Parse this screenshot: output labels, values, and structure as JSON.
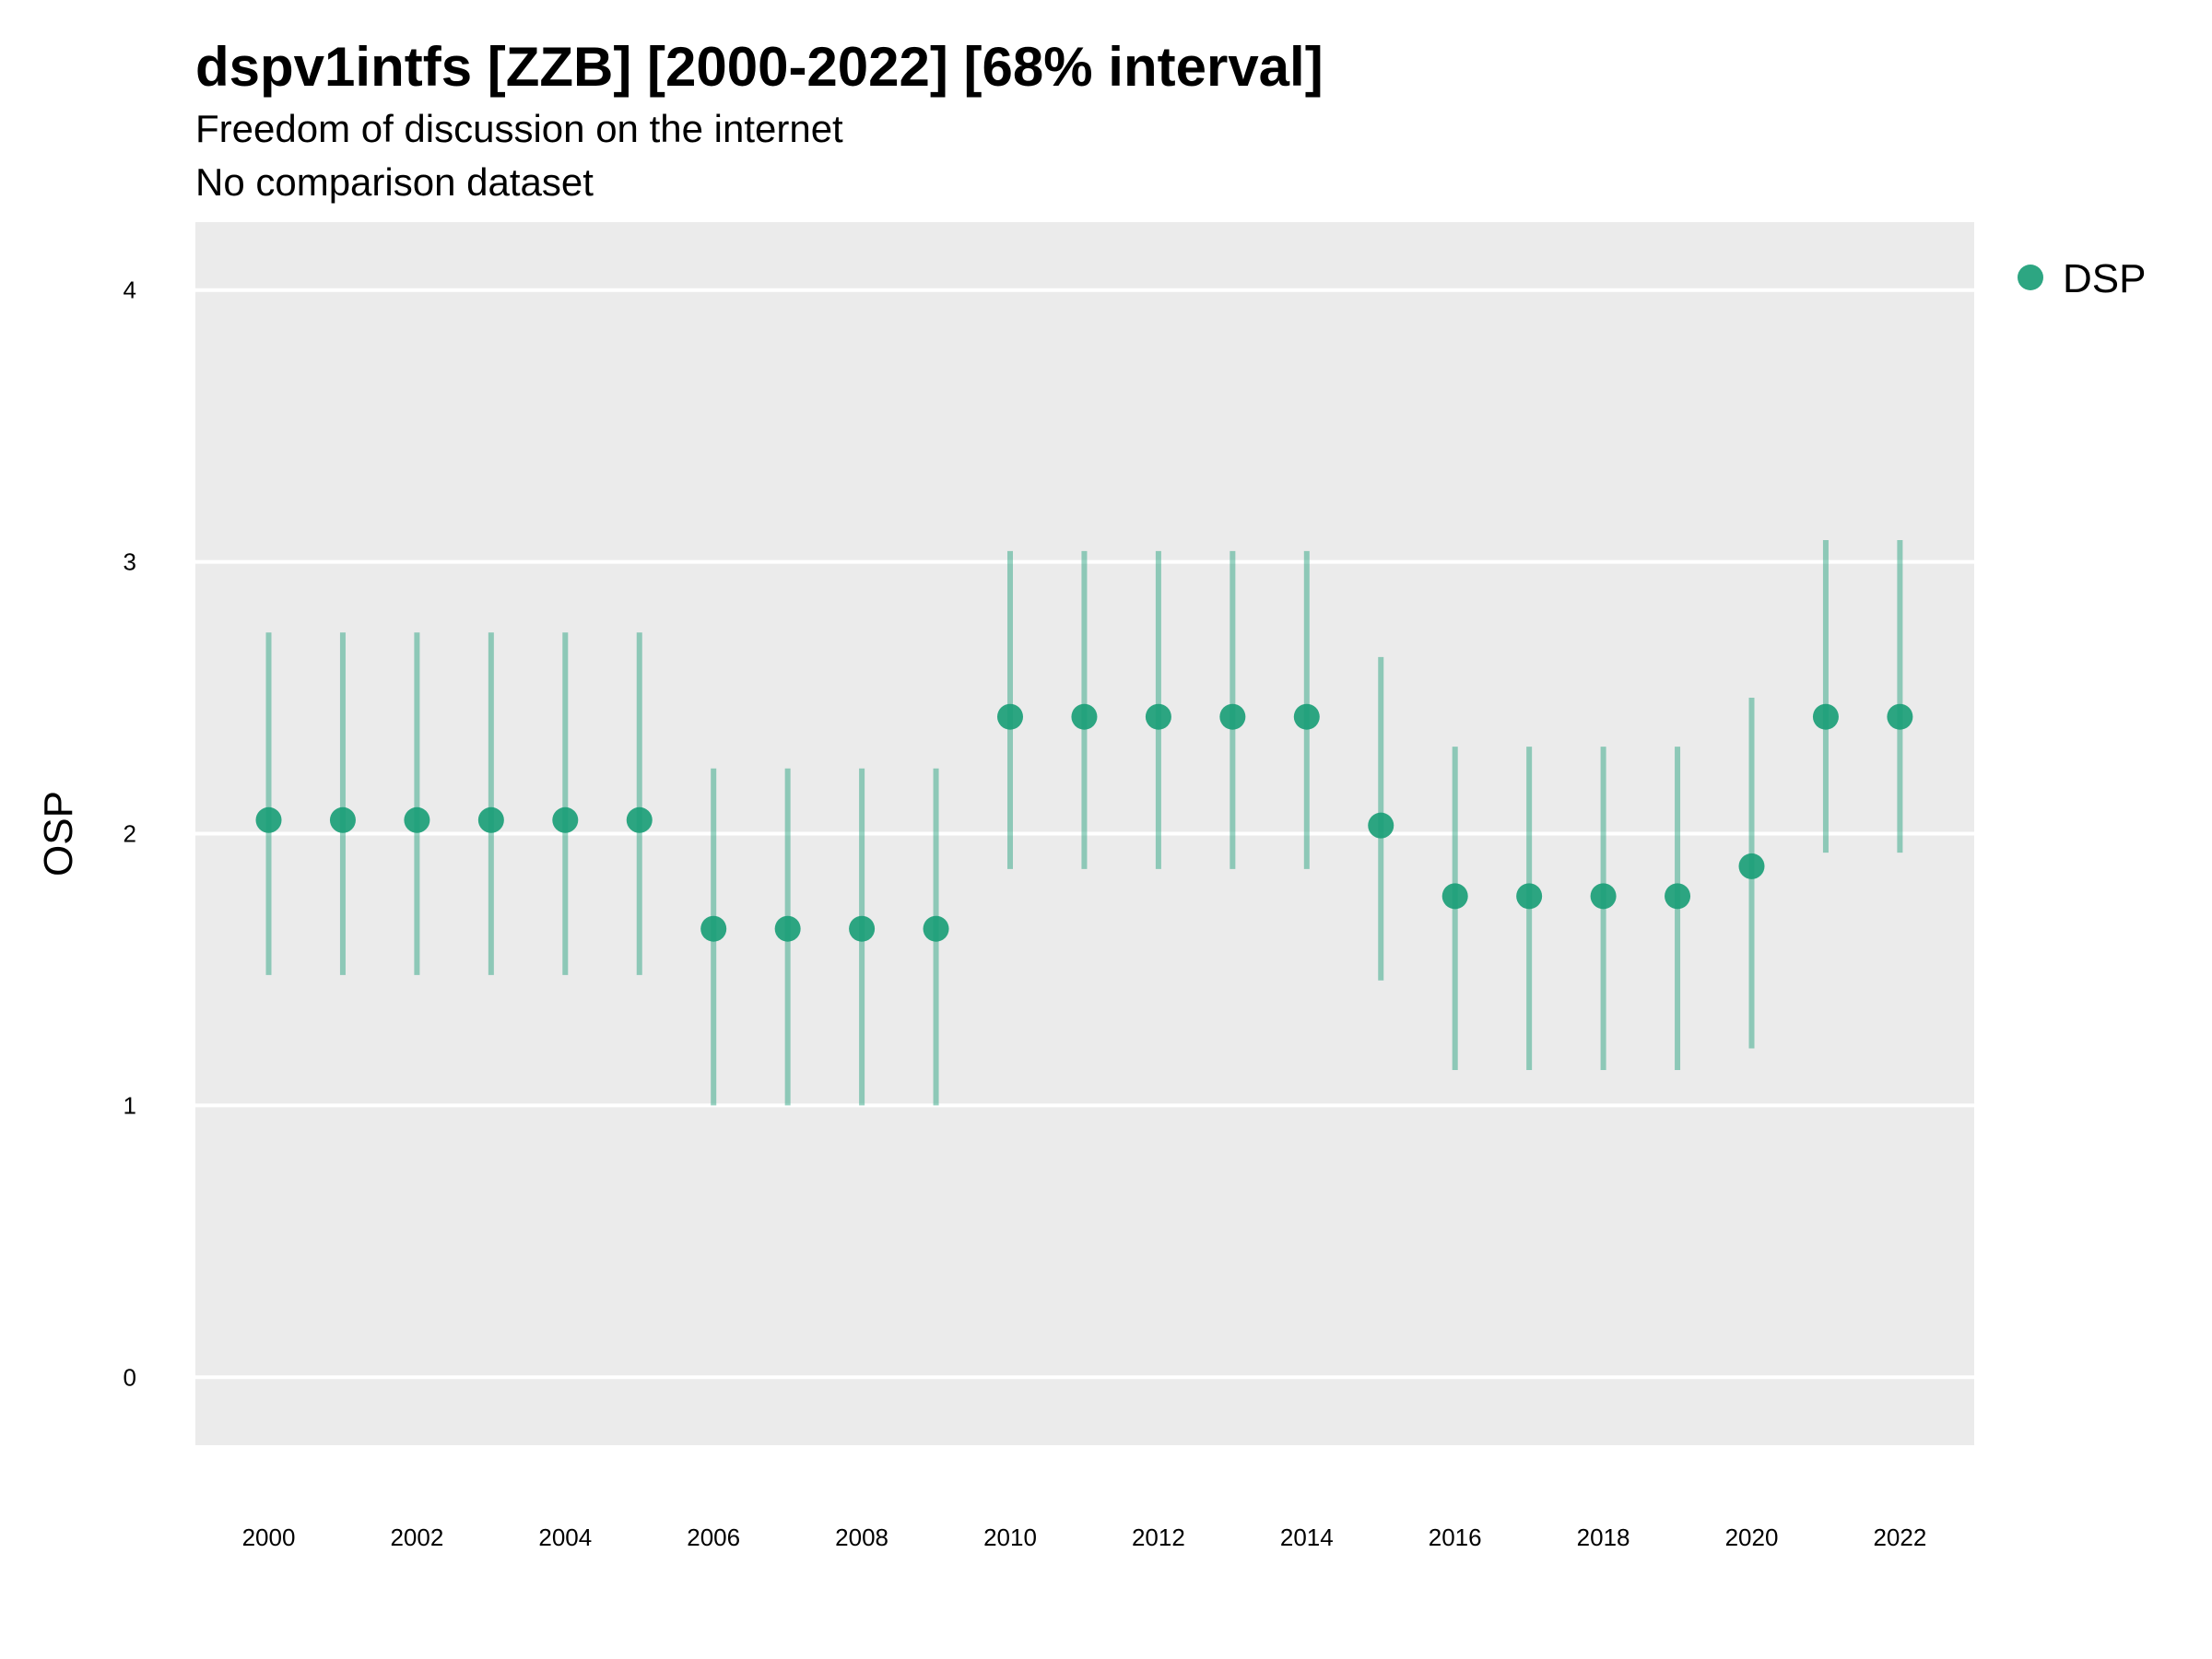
{
  "title": "dspv1intfs [ZZB] [2000-2022] [68% interval]",
  "subtitle": "Freedom of discussion on the internet",
  "caption": "No comparison dataset",
  "colors": {
    "accent": "#1b9e77",
    "panel": "#ebebeb",
    "grid": "#ffffff"
  },
  "chart_data": {
    "type": "scatter",
    "title": "dspv1intfs [ZZB] [2000-2022] [68% interval]",
    "xlabel": "",
    "ylabel": "OSP",
    "ylim": [
      -0.25,
      4.25
    ],
    "xlim": [
      1999,
      2023
    ],
    "yticks": [
      0,
      1,
      2,
      3,
      4
    ],
    "yticklabels": [
      "0",
      "1",
      "2",
      "3",
      "4"
    ],
    "xticks": [
      2000,
      2002,
      2004,
      2006,
      2008,
      2010,
      2012,
      2014,
      2016,
      2018,
      2020,
      2022
    ],
    "xticklabels": [
      "2000",
      "2002",
      "2004",
      "2006",
      "2008",
      "2010",
      "2012",
      "2014",
      "2016",
      "2018",
      "2020",
      "2022"
    ],
    "grid": true,
    "legend_position": "right",
    "series": [
      {
        "name": "DSP",
        "color": "#1b9e77",
        "x": [
          2000,
          2001,
          2002,
          2003,
          2004,
          2005,
          2006,
          2007,
          2008,
          2009,
          2010,
          2011,
          2012,
          2013,
          2014,
          2015,
          2016,
          2017,
          2018,
          2019,
          2020,
          2021,
          2022
        ],
        "y": [
          2.05,
          2.05,
          2.05,
          2.05,
          2.05,
          2.05,
          1.65,
          1.65,
          1.65,
          1.65,
          2.43,
          2.43,
          2.43,
          2.43,
          2.43,
          2.03,
          1.77,
          1.77,
          1.77,
          1.77,
          1.88,
          2.43,
          2.43
        ],
        "lower": [
          1.48,
          1.48,
          1.48,
          1.48,
          1.48,
          1.48,
          1.0,
          1.0,
          1.0,
          1.0,
          1.87,
          1.87,
          1.87,
          1.87,
          1.87,
          1.46,
          1.13,
          1.13,
          1.13,
          1.13,
          1.21,
          1.93,
          1.93
        ],
        "upper": [
          2.74,
          2.74,
          2.74,
          2.74,
          2.74,
          2.74,
          2.24,
          2.24,
          2.24,
          2.24,
          3.04,
          3.04,
          3.04,
          3.04,
          3.04,
          2.65,
          2.32,
          2.32,
          2.32,
          2.32,
          2.5,
          3.08,
          3.08
        ]
      }
    ]
  }
}
